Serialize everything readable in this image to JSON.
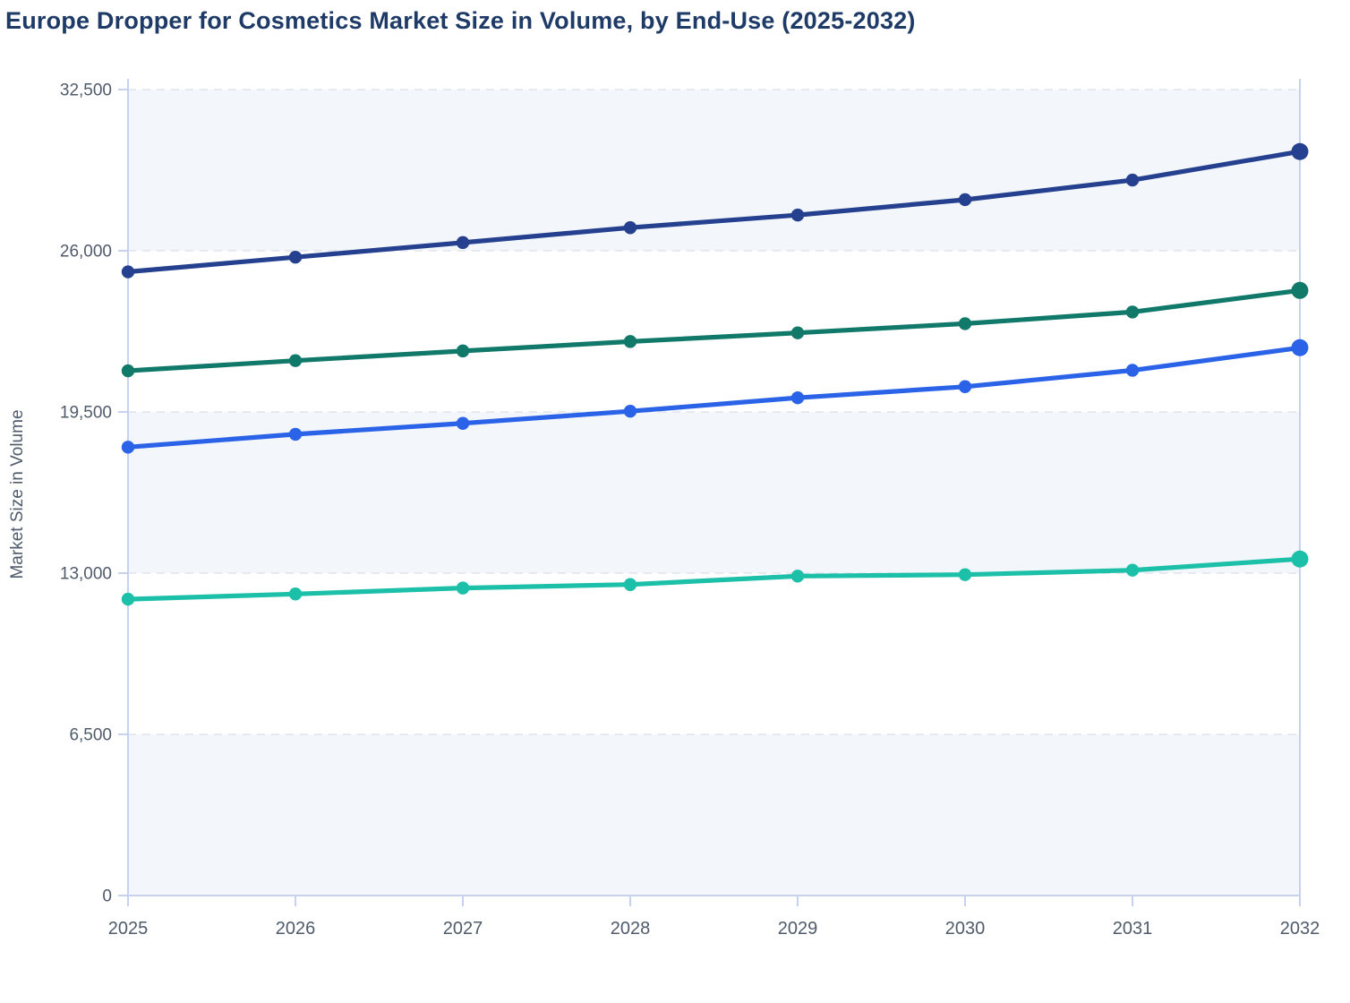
{
  "title": "Europe Dropper for Cosmetics Market Size in Volume, by End-Use (2025-2032)",
  "chart_data": {
    "type": "line",
    "title": "Europe Dropper for Cosmetics Market Size in Volume, by End-Use (2025-2032)",
    "xlabel": "",
    "ylabel": "Market Size in Volume",
    "x": [
      "2025",
      "2026",
      "2027",
      "2028",
      "2029",
      "2030",
      "2031",
      "2032"
    ],
    "ylim": [
      0,
      32500
    ],
    "yticks": [
      0,
      6500,
      13000,
      19500,
      26000,
      32500
    ],
    "ytick_labels": [
      "0",
      "6,500",
      "13,000",
      "19,500",
      "26,000",
      "32,500"
    ],
    "grid": "horizontal-dashed",
    "plot_bands": "alternating-shaded-from-top",
    "legend_position": "none",
    "series": [
      {
        "name": "series-1-navy",
        "color": "#24408e",
        "values": [
          25150,
          25740,
          26330,
          26930,
          27440,
          28060,
          28850,
          30000
        ]
      },
      {
        "name": "series-2-green",
        "color": "#11796a",
        "values": [
          21160,
          21570,
          21960,
          22340,
          22690,
          23060,
          23530,
          24400
        ]
      },
      {
        "name": "series-3-blue",
        "color": "#2b63e8",
        "values": [
          18080,
          18600,
          19040,
          19530,
          20070,
          20520,
          21180,
          22090
        ]
      },
      {
        "name": "series-4-teal",
        "color": "#1cbfa8",
        "values": [
          11950,
          12160,
          12400,
          12540,
          12880,
          12940,
          13120,
          13570
        ]
      }
    ]
  },
  "colors": {
    "title_text": "#1e3a66",
    "tick_text": "#4f5b6b",
    "axis_line": "#c7d1f0",
    "gridline": "#dfe4ec",
    "band_fill": "#f3f6fa",
    "background": "#ffffff"
  }
}
